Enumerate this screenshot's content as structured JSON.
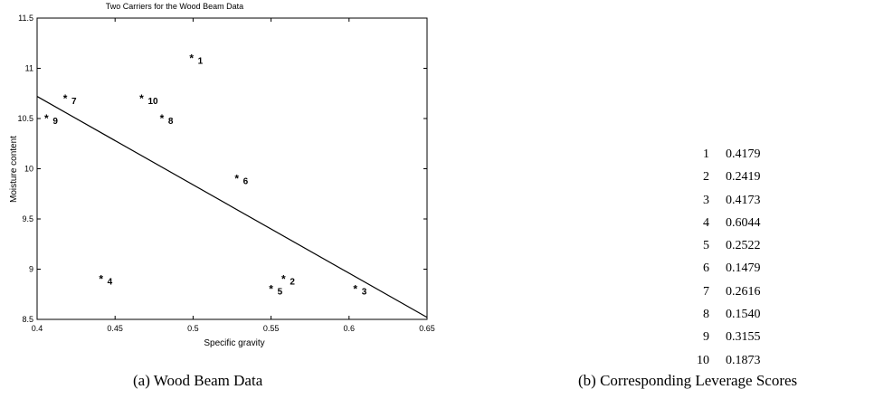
{
  "chart_data": {
    "type": "scatter",
    "title": "Two Carriers for the Wood Beam Data",
    "xlabel": "Specific gravity",
    "ylabel": "Moisture content",
    "xlim": [
      0.4,
      0.65
    ],
    "ylim": [
      8.5,
      11.5
    ],
    "xticks": [
      "0.4",
      "0.45",
      "0.5",
      "0.55",
      "0.6",
      "0.65"
    ],
    "yticks": [
      "8.5",
      "9",
      "9.5",
      "10",
      "10.5",
      "11",
      "11.5"
    ],
    "xtick_values": [
      0.4,
      0.45,
      0.5,
      0.55,
      0.6,
      0.65
    ],
    "ytick_values": [
      8.5,
      9,
      9.5,
      10,
      10.5,
      11,
      11.5
    ],
    "grid": false,
    "marker": "*",
    "points": [
      {
        "label": "1",
        "x": 0.499,
        "y": 11.1
      },
      {
        "label": "2",
        "x": 0.558,
        "y": 8.9
      },
      {
        "label": "3",
        "x": 0.604,
        "y": 8.8
      },
      {
        "label": "4",
        "x": 0.441,
        "y": 8.9
      },
      {
        "label": "5",
        "x": 0.55,
        "y": 8.8
      },
      {
        "label": "6",
        "x": 0.528,
        "y": 9.9
      },
      {
        "label": "7",
        "x": 0.418,
        "y": 10.7
      },
      {
        "label": "8",
        "x": 0.48,
        "y": 10.5
      },
      {
        "label": "9",
        "x": 0.406,
        "y": 10.5
      },
      {
        "label": "10",
        "x": 0.467,
        "y": 10.7
      }
    ],
    "fit_line": {
      "x": [
        0.4,
        0.65
      ],
      "y": [
        10.72,
        8.52
      ]
    }
  },
  "leverage_table": {
    "rows": [
      {
        "index": "1",
        "score": "0.4179"
      },
      {
        "index": "2",
        "score": "0.2419"
      },
      {
        "index": "3",
        "score": "0.4173"
      },
      {
        "index": "4",
        "score": "0.6044"
      },
      {
        "index": "5",
        "score": "0.2522"
      },
      {
        "index": "6",
        "score": "0.1479"
      },
      {
        "index": "7",
        "score": "0.2616"
      },
      {
        "index": "8",
        "score": "0.1540"
      },
      {
        "index": "9",
        "score": "0.3155"
      },
      {
        "index": "10",
        "score": "0.1873"
      }
    ]
  },
  "captions": {
    "a": "(a)  Wood Beam Data",
    "b": "(b)  Corresponding Leverage Scores"
  }
}
